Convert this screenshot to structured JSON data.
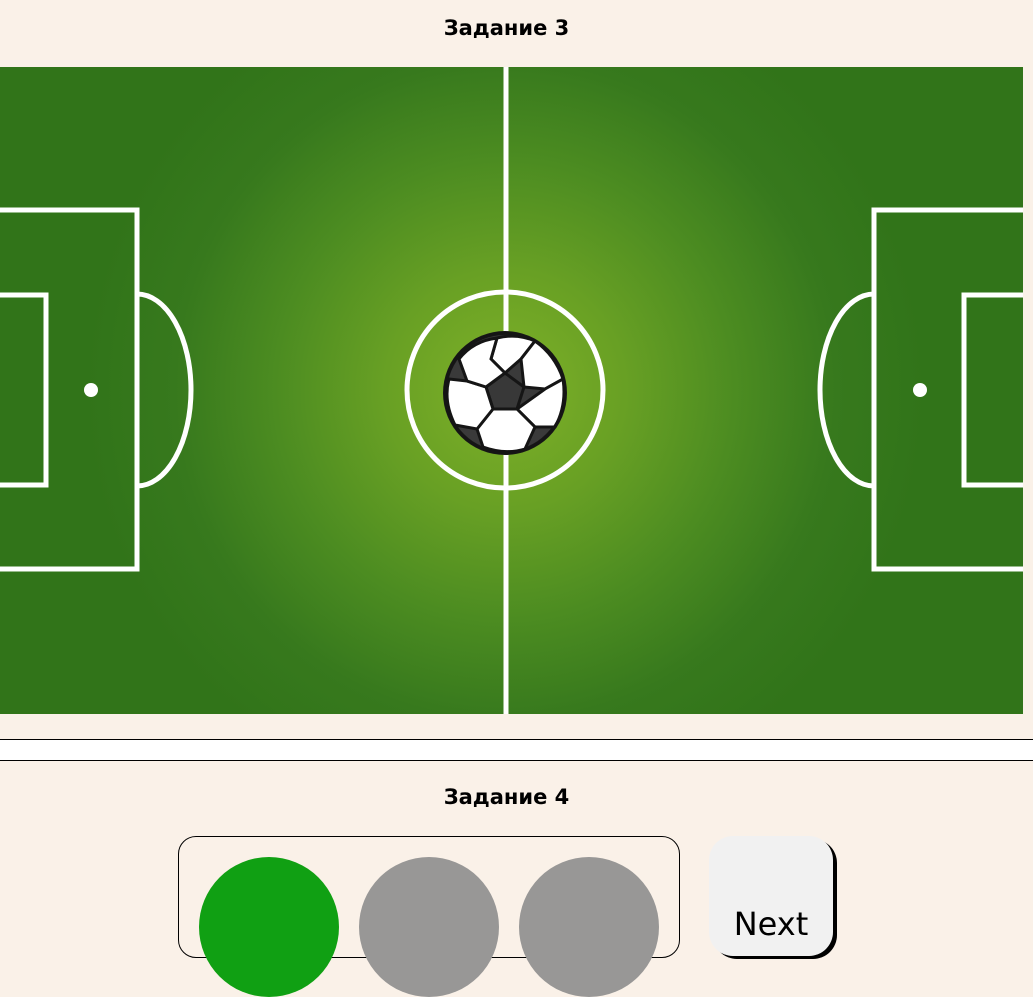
{
  "task3": {
    "title": "Задание 3"
  },
  "task4": {
    "title": "Задание 4"
  },
  "traffic_light": {
    "lights": [
      {
        "state": "on",
        "color": "#10a013"
      },
      {
        "state": "off",
        "color": "#989796"
      },
      {
        "state": "off",
        "color": "#989796"
      }
    ]
  },
  "controls": {
    "next_label": "Next"
  },
  "colors": {
    "page_background": "#faf1e8",
    "field_center": "#7fb128",
    "field_edge": "#317419",
    "field_lines": "#ffffff"
  },
  "icons": {
    "ball": "soccer-ball-icon"
  }
}
